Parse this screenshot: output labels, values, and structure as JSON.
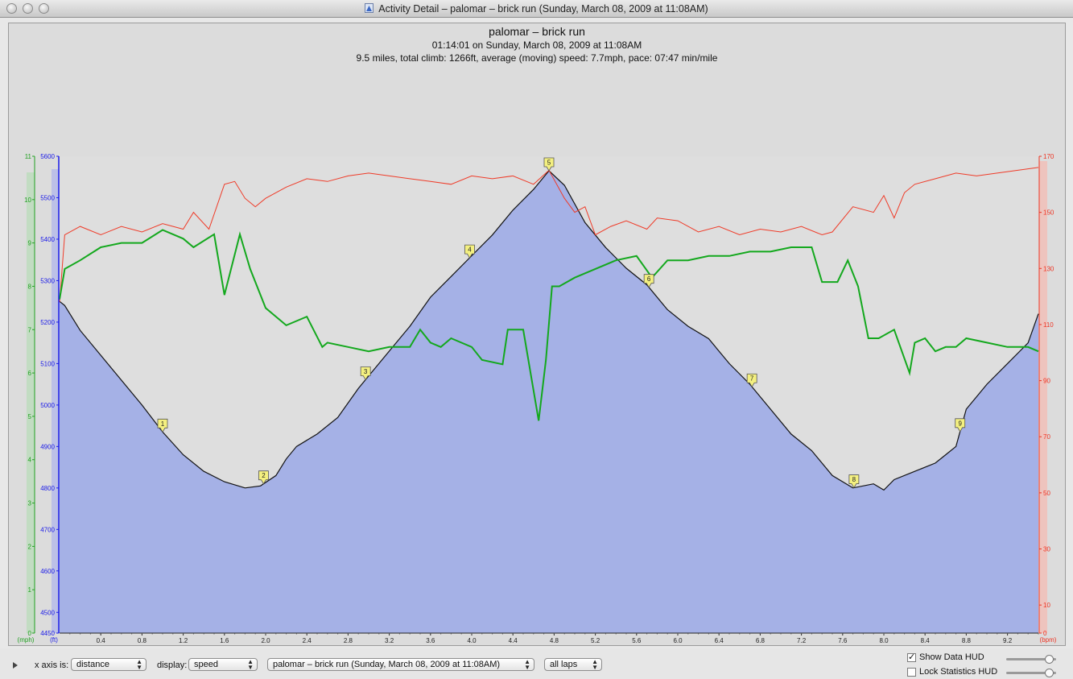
{
  "window": {
    "title": "Activity Detail – palomar – brick run  (Sunday, March 08, 2009 at 11:08AM)"
  },
  "header": {
    "title": "palomar – brick run",
    "line2": "01:14:01 on Sunday, March 08, 2009 at 11:08AM",
    "line3": "9.5 miles, total climb: 1266ft, average (moving) speed: 7.7mph, pace: 07:47 min/mile"
  },
  "controls": {
    "xaxis_label": "x axis is:",
    "xaxis_value": "distance",
    "display_label": "display:",
    "display_value": "speed",
    "activity_value": "palomar – brick run  (Sunday, March 08, 2009 at 11:08AM)",
    "laps_value": "all laps",
    "show_hud_label": "Show Data HUD",
    "show_hud_checked": true,
    "lock_stats_label": "Lock Statistics HUD",
    "lock_stats_checked": false
  },
  "colors": {
    "altitude_fill": "#a5b1e6",
    "speed_line": "#13a81d",
    "heart_line": "#ef3b28",
    "mph_axis": "#20a020",
    "ft_axis": "#1a1ae8",
    "bpm_axis": "#ee3322"
  },
  "chart_data": {
    "type": "line",
    "x_unit": "mi",
    "xlim": [
      0,
      9.5
    ],
    "x_ticks": [
      "0.4",
      "0.8",
      "1.2",
      "1.6",
      "2.0",
      "2.4",
      "2.8",
      "3.2",
      "3.6",
      "4.0",
      "4.4",
      "4.8",
      "5.2",
      "5.6",
      "6.0",
      "6.4",
      "6.8",
      "7.2",
      "7.6",
      "8.0",
      "8.4",
      "8.8",
      "9.2"
    ],
    "axes": {
      "mph": {
        "label": "(mph)",
        "range": [
          0,
          11
        ],
        "ticks": [
          "0",
          "1",
          "2",
          "3",
          "4",
          "5",
          "6",
          "7",
          "8",
          "9",
          "10",
          "11"
        ]
      },
      "ft": {
        "label": "(ft)",
        "range": [
          4450,
          5600
        ],
        "ticks": [
          "4450",
          "4500",
          "4600",
          "4700",
          "4800",
          "4900",
          "5000",
          "5100",
          "5200",
          "5300",
          "5400",
          "5500",
          "5600"
        ]
      },
      "bpm": {
        "label": "(bpm)",
        "range": [
          0,
          170
        ],
        "ticks": [
          "0",
          "10",
          "30",
          "50",
          "70",
          "90",
          "110",
          "130",
          "150",
          "170"
        ]
      }
    },
    "series": [
      {
        "name": "altitude",
        "axis": "ft",
        "type": "area",
        "x": [
          0,
          0.05,
          0.2,
          0.4,
          0.6,
          0.8,
          1.0,
          1.2,
          1.4,
          1.6,
          1.8,
          1.95,
          2.1,
          2.2,
          2.3,
          2.5,
          2.7,
          2.9,
          3.0,
          3.2,
          3.4,
          3.6,
          3.8,
          4.0,
          4.2,
          4.4,
          4.6,
          4.75,
          4.9,
          5.1,
          5.3,
          5.5,
          5.7,
          5.9,
          6.1,
          6.3,
          6.5,
          6.7,
          6.9,
          7.1,
          7.3,
          7.5,
          7.7,
          7.9,
          8.0,
          8.1,
          8.3,
          8.5,
          8.6,
          8.7,
          8.8,
          8.9,
          9.0,
          9.2,
          9.4,
          9.5
        ],
        "y": [
          5250,
          5240,
          5180,
          5120,
          5060,
          5000,
          4935,
          4880,
          4840,
          4815,
          4800,
          4805,
          4830,
          4870,
          4900,
          4930,
          4970,
          5040,
          5070,
          5130,
          5190,
          5260,
          5310,
          5360,
          5410,
          5470,
          5520,
          5565,
          5530,
          5440,
          5380,
          5330,
          5290,
          5230,
          5190,
          5160,
          5100,
          5050,
          4990,
          4930,
          4890,
          4830,
          4800,
          4810,
          4795,
          4820,
          4840,
          4860,
          4880,
          4900,
          4990,
          5020,
          5050,
          5100,
          5150,
          5220
        ]
      },
      {
        "name": "speed",
        "axis": "mph",
        "type": "line",
        "x": [
          0,
          0.05,
          0.2,
          0.4,
          0.6,
          0.8,
          1.0,
          1.2,
          1.3,
          1.5,
          1.6,
          1.75,
          1.85,
          2.0,
          2.1,
          2.2,
          2.4,
          2.55,
          2.6,
          2.8,
          3.0,
          3.2,
          3.4,
          3.5,
          3.6,
          3.7,
          3.8,
          4.0,
          4.1,
          4.3,
          4.35,
          4.5,
          4.65,
          4.72,
          4.78,
          4.85,
          5.0,
          5.2,
          5.4,
          5.6,
          5.75,
          5.9,
          6.1,
          6.3,
          6.5,
          6.7,
          6.9,
          7.1,
          7.3,
          7.4,
          7.55,
          7.65,
          7.75,
          7.85,
          7.95,
          8.1,
          8.25,
          8.3,
          8.4,
          8.5,
          8.6,
          8.7,
          8.8,
          9.0,
          9.2,
          9.4,
          9.5
        ],
        "y": [
          7.7,
          8.4,
          8.6,
          8.9,
          9.0,
          9.0,
          9.3,
          9.1,
          8.9,
          9.2,
          7.8,
          9.2,
          8.4,
          7.5,
          7.3,
          7.1,
          7.3,
          6.6,
          6.7,
          6.6,
          6.5,
          6.6,
          6.6,
          7.0,
          6.7,
          6.6,
          6.8,
          6.6,
          6.3,
          6.2,
          7.0,
          7.0,
          4.9,
          6.3,
          8.0,
          8.0,
          8.2,
          8.4,
          8.6,
          8.7,
          8.2,
          8.6,
          8.6,
          8.7,
          8.7,
          8.8,
          8.8,
          8.9,
          8.9,
          8.1,
          8.1,
          8.6,
          8.0,
          6.8,
          6.8,
          7.0,
          6.0,
          6.7,
          6.8,
          6.5,
          6.6,
          6.6,
          6.8,
          6.7,
          6.6,
          6.6,
          6.5
        ]
      },
      {
        "name": "heart rate",
        "axis": "bpm",
        "type": "line",
        "x": [
          0,
          0.05,
          0.2,
          0.4,
          0.6,
          0.8,
          1.0,
          1.2,
          1.3,
          1.45,
          1.6,
          1.7,
          1.8,
          1.9,
          2.0,
          2.2,
          2.4,
          2.6,
          2.8,
          3.0,
          3.2,
          3.4,
          3.6,
          3.8,
          4.0,
          4.2,
          4.4,
          4.6,
          4.75,
          4.9,
          5.0,
          5.1,
          5.2,
          5.35,
          5.5,
          5.7,
          5.8,
          6.0,
          6.2,
          6.4,
          6.6,
          6.8,
          7.0,
          7.2,
          7.4,
          7.5,
          7.7,
          7.9,
          8.0,
          8.1,
          8.2,
          8.3,
          8.5,
          8.7,
          8.9,
          9.1,
          9.3,
          9.5
        ],
        "y": [
          118,
          142,
          145,
          142,
          145,
          143,
          146,
          144,
          150,
          144,
          160,
          161,
          155,
          152,
          155,
          159,
          162,
          161,
          163,
          164,
          163,
          162,
          161,
          160,
          163,
          162,
          163,
          160,
          165,
          155,
          150,
          152,
          142,
          145,
          147,
          144,
          148,
          147,
          143,
          145,
          142,
          144,
          143,
          145,
          142,
          143,
          152,
          150,
          156,
          148,
          157,
          160,
          162,
          164,
          163,
          164,
          165,
          166
        ]
      }
    ],
    "laps": [
      {
        "label": "1",
        "x": 1.0
      },
      {
        "label": "2",
        "x": 1.98
      },
      {
        "label": "3",
        "x": 2.97
      },
      {
        "label": "4",
        "x": 3.98
      },
      {
        "label": "5",
        "x": 4.75
      },
      {
        "label": "6",
        "x": 5.72
      },
      {
        "label": "7",
        "x": 6.72
      },
      {
        "label": "8",
        "x": 7.71
      },
      {
        "label": "9",
        "x": 8.74
      }
    ],
    "grid": false,
    "legend": "none"
  }
}
